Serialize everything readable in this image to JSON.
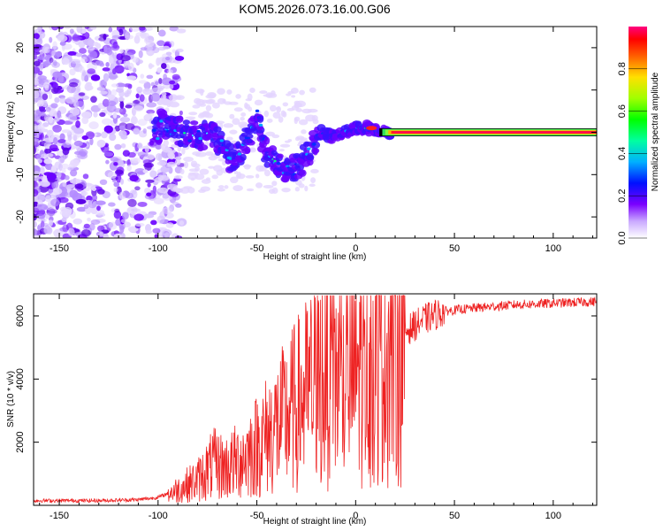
{
  "chart_data": [
    {
      "type": "heatmap",
      "title": "KOM5.2026.073.16.00.G06",
      "xlabel": "Height of straight line (km)",
      "ylabel": "Frequency (Hz)",
      "xlim": [
        -163,
        122
      ],
      "ylim": [
        -25,
        25
      ],
      "xticks": [
        -150,
        -100,
        -50,
        0,
        50,
        100
      ],
      "yticks": [
        -20,
        -10,
        0,
        10,
        20
      ],
      "colorbar": {
        "label": "Normalized spectral amplitude",
        "range": [
          0,
          1
        ],
        "ticks": [
          "0.0",
          "0.2",
          "0.4",
          "0.6",
          "0.8"
        ]
      },
      "ridge": [
        {
          "x": -100,
          "y": 3
        },
        {
          "x": -95,
          "y": 1
        },
        {
          "x": -88,
          "y": 0
        },
        {
          "x": -80,
          "y": -1
        },
        {
          "x": -73,
          "y": 0
        },
        {
          "x": -68,
          "y": -3
        },
        {
          "x": -62,
          "y": -7
        },
        {
          "x": -55,
          "y": -2
        },
        {
          "x": -50,
          "y": 4
        },
        {
          "x": -45,
          "y": -5
        },
        {
          "x": -38,
          "y": -8
        },
        {
          "x": -32,
          "y": -9
        },
        {
          "x": -26,
          "y": -6
        },
        {
          "x": -22,
          "y": -3
        },
        {
          "x": -18,
          "y": 0
        },
        {
          "x": -12,
          "y": -1
        },
        {
          "x": -6,
          "y": 0
        },
        {
          "x": 0,
          "y": 1
        },
        {
          "x": 6,
          "y": 1
        },
        {
          "x": 12,
          "y": 0
        },
        {
          "x": 20,
          "y": 0
        },
        {
          "x": 122,
          "y": 0
        }
      ]
    },
    {
      "type": "line",
      "xlabel": "Height of straight line (km)",
      "ylabel": "SNR (10 * v/v)",
      "xlim": [
        -163,
        122
      ],
      "ylim": [
        0,
        6700
      ],
      "xticks": [
        -150,
        -100,
        -50,
        0,
        50,
        100
      ],
      "yticks": [
        2000,
        4000,
        6000
      ],
      "color": "#ee2222",
      "envelope": [
        {
          "x": -163,
          "y": 150
        },
        {
          "x": -130,
          "y": 150
        },
        {
          "x": -110,
          "y": 180
        },
        {
          "x": -100,
          "y": 250
        },
        {
          "x": -90,
          "y": 500
        },
        {
          "x": -80,
          "y": 800
        },
        {
          "x": -72,
          "y": 1300
        },
        {
          "x": -65,
          "y": 1200
        },
        {
          "x": -55,
          "y": 1600
        },
        {
          "x": -45,
          "y": 2200
        },
        {
          "x": -35,
          "y": 2800
        },
        {
          "x": -25,
          "y": 3500
        },
        {
          "x": -15,
          "y": 4200
        },
        {
          "x": -5,
          "y": 4000
        },
        {
          "x": 5,
          "y": 4600
        },
        {
          "x": 15,
          "y": 5000
        },
        {
          "x": 25,
          "y": 5500
        },
        {
          "x": 35,
          "y": 5900
        },
        {
          "x": 45,
          "y": 6150
        },
        {
          "x": 60,
          "y": 6250
        },
        {
          "x": 80,
          "y": 6350
        },
        {
          "x": 100,
          "y": 6400
        },
        {
          "x": 122,
          "y": 6450
        }
      ]
    }
  ]
}
